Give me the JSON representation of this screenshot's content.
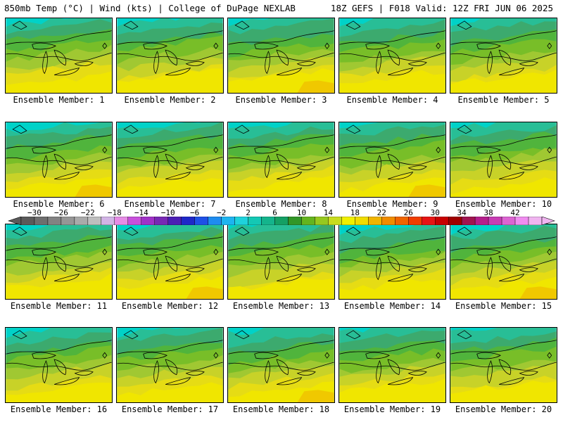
{
  "header": {
    "left": "850mb Temp (°C) | Wind (kts) | College of DuPage NEXLAB",
    "right": "18Z GEFS | F018 Valid: 12Z FRI JUN 06 2025"
  },
  "caption_prefix": "Ensemble Member: ",
  "members": [
    {
      "label": "Ensemble Member: 1"
    },
    {
      "label": "Ensemble Member: 2"
    },
    {
      "label": "Ensemble Member: 3"
    },
    {
      "label": "Ensemble Member: 4"
    },
    {
      "label": "Ensemble Member: 5"
    },
    {
      "label": "Ensemble Member: 6"
    },
    {
      "label": "Ensemble Member: 7"
    },
    {
      "label": "Ensemble Member: 8"
    },
    {
      "label": "Ensemble Member: 9"
    },
    {
      "label": "Ensemble Member: 10"
    },
    {
      "label": "Ensemble Member: 11"
    },
    {
      "label": "Ensemble Member: 12"
    },
    {
      "label": "Ensemble Member: 13"
    },
    {
      "label": "Ensemble Member: 14"
    },
    {
      "label": "Ensemble Member: 15"
    },
    {
      "label": "Ensemble Member: 16"
    },
    {
      "label": "Ensemble Member: 17"
    },
    {
      "label": "Ensemble Member: 18"
    },
    {
      "label": "Ensemble Member: 19"
    },
    {
      "label": "Ensemble Member: 20"
    }
  ],
  "colorbar": {
    "labels": [
      "−30",
      "−26",
      "−22",
      "−18",
      "−14",
      "−10",
      "−6",
      "−2",
      "2",
      "6",
      "10",
      "14",
      "18",
      "22",
      "26",
      "30",
      "34",
      "38",
      "42"
    ],
    "colors": [
      "#5a5a5a",
      "#6e6e6e",
      "#828282",
      "#969696",
      "#aaaaaa",
      "#bebebe",
      "#d2b4e6",
      "#e68ce6",
      "#c850dc",
      "#a030c8",
      "#7828b4",
      "#4b1eb4",
      "#1e28c8",
      "#1e50e6",
      "#1e8cf0",
      "#1eb4f0",
      "#1ed2dc",
      "#14c8b4",
      "#14b48c",
      "#14a064",
      "#329628",
      "#64b41e",
      "#96c81e",
      "#c8dc1e",
      "#f0f000",
      "#f0dc00",
      "#f0b400",
      "#f08c00",
      "#f06400",
      "#f03c00",
      "#e61414",
      "#c80000",
      "#a00000",
      "#a01450",
      "#b41e8c",
      "#c83cb4",
      "#dc64d2",
      "#f08cf0",
      "#f0b4f0"
    ],
    "water_colors": [
      "#00d2c8",
      "#28be96",
      "#3caa6e",
      "#50b43c",
      "#78be28",
      "#a0c832",
      "#c8d228",
      "#e6dc14",
      "#f0e600",
      "#f0c800"
    ]
  }
}
